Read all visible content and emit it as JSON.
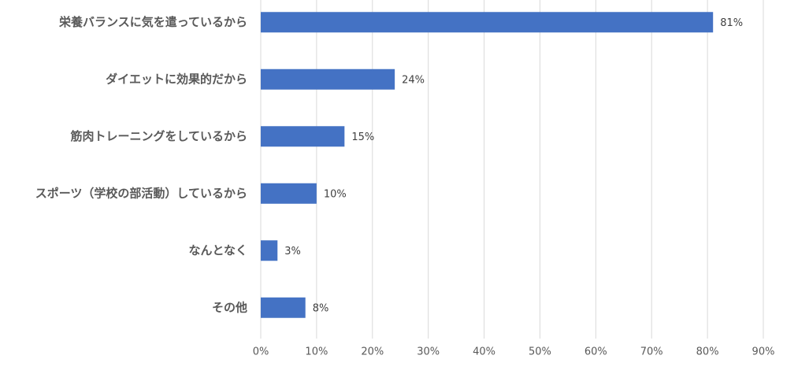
{
  "chart_data": {
    "type": "bar",
    "orientation": "horizontal",
    "categories": [
      "栄養バランスに気を遣っているから",
      "ダイエットに効果的だから",
      "筋肉トレーニングをしているから",
      "スポーツ（学校の部活動）しているから",
      "なんとなく",
      "その他"
    ],
    "values": [
      81,
      24,
      15,
      10,
      3,
      8
    ],
    "value_labels": [
      "81%",
      "24%",
      "15%",
      "10%",
      "3%",
      "8%"
    ],
    "color": "#4472c4",
    "xlim": [
      0,
      90
    ],
    "xticks": [
      {
        "value": 0,
        "label": "0%"
      },
      {
        "value": 10,
        "label": "10%"
      },
      {
        "value": 20,
        "label": "20%"
      },
      {
        "value": 30,
        "label": "30%"
      },
      {
        "value": 40,
        "label": "40%"
      },
      {
        "value": 50,
        "label": "50%"
      },
      {
        "value": 60,
        "label": "60%"
      },
      {
        "value": 70,
        "label": "70%"
      },
      {
        "value": 80,
        "label": "80%"
      },
      {
        "value": 90,
        "label": "90%"
      }
    ],
    "grid": true
  }
}
